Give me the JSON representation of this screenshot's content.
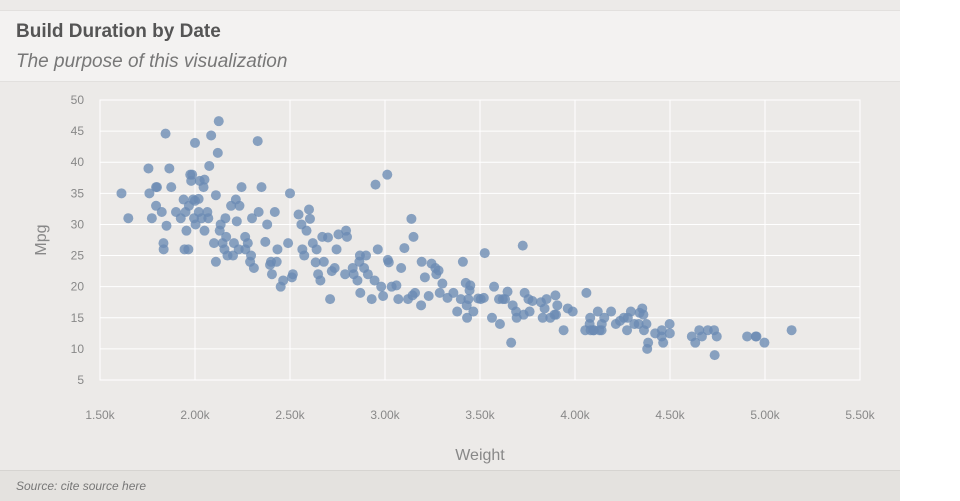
{
  "header": {
    "title": "Build Duration by Date",
    "subtitle": "The purpose of this visualization"
  },
  "footer": {
    "source": "Source: cite source here"
  },
  "colors": {
    "point": "#6a8bb4",
    "grid": "#ffffff",
    "plot_background": "#eceae8"
  },
  "chart_data": {
    "type": "scatter",
    "title": "Build Duration by Date",
    "subtitle": "The purpose of this visualization",
    "xlabel": "Weight",
    "ylabel": "Mpg",
    "xlim": [
      1500,
      5500
    ],
    "ylim": [
      5,
      50
    ],
    "x_ticks": [
      1500,
      2000,
      2500,
      3000,
      3500,
      4000,
      4500,
      5000,
      5500
    ],
    "x_tick_labels": [
      "1.50k",
      "2.00k",
      "2.50k",
      "3.00k",
      "3.50k",
      "4.00k",
      "4.50k",
      "5.00k",
      "5.50k"
    ],
    "y_ticks": [
      5,
      10,
      15,
      20,
      25,
      30,
      35,
      40,
      45,
      50
    ],
    "y_tick_labels": [
      "5",
      "10",
      "15",
      "20",
      "25",
      "30",
      "35",
      "40",
      "45",
      "50"
    ],
    "grid": true,
    "series": [
      {
        "points": [
          [
            1613,
            35
          ],
          [
            1649,
            31
          ],
          [
            1755,
            39
          ],
          [
            1760,
            35
          ],
          [
            1773,
            31
          ],
          [
            1795,
            33
          ],
          [
            1795,
            36
          ],
          [
            1800,
            36
          ],
          [
            1825,
            32
          ],
          [
            1834,
            27
          ],
          [
            1835,
            26
          ],
          [
            1845,
            44.6
          ],
          [
            1850,
            29.8
          ],
          [
            1865,
            39
          ],
          [
            1875,
            36
          ],
          [
            1900,
            32
          ],
          [
            1925,
            31
          ],
          [
            1940,
            34
          ],
          [
            1945,
            26
          ],
          [
            1950,
            32
          ],
          [
            1955,
            29
          ],
          [
            1965,
            26
          ],
          [
            1968,
            33
          ],
          [
            1975,
            38
          ],
          [
            1980,
            37
          ],
          [
            1985,
            38
          ],
          [
            1990,
            34
          ],
          [
            1995,
            31
          ],
          [
            2000,
            33.8
          ],
          [
            2000,
            43.1
          ],
          [
            2003,
            30
          ],
          [
            2019,
            34.1
          ],
          [
            2020,
            32
          ],
          [
            2025,
            37
          ],
          [
            2035,
            31
          ],
          [
            2045,
            36
          ],
          [
            2050,
            29
          ],
          [
            2050,
            37.2
          ],
          [
            2065,
            32
          ],
          [
            2070,
            31
          ],
          [
            2075,
            39.4
          ],
          [
            2085,
            44.3
          ],
          [
            2100,
            27
          ],
          [
            2110,
            24
          ],
          [
            2110,
            34.7
          ],
          [
            2120,
            41.5
          ],
          [
            2125,
            46.6
          ],
          [
            2130,
            29
          ],
          [
            2135,
            30
          ],
          [
            2145,
            27
          ],
          [
            2155,
            26
          ],
          [
            2160,
            31
          ],
          [
            2164,
            28
          ],
          [
            2171,
            25
          ],
          [
            2190,
            33
          ],
          [
            2200,
            25
          ],
          [
            2205,
            27
          ],
          [
            2215,
            34
          ],
          [
            2220,
            30.5
          ],
          [
            2230,
            26
          ],
          [
            2234,
            33
          ],
          [
            2245,
            36
          ],
          [
            2264,
            28
          ],
          [
            2265,
            26
          ],
          [
            2278,
            27
          ],
          [
            2290,
            24
          ],
          [
            2295,
            25
          ],
          [
            2300,
            31
          ],
          [
            2310,
            23
          ],
          [
            2330,
            43.4
          ],
          [
            2335,
            32
          ],
          [
            2350,
            36
          ],
          [
            2370,
            27.2
          ],
          [
            2380,
            30
          ],
          [
            2395,
            23.5
          ],
          [
            2400,
            24
          ],
          [
            2405,
            22
          ],
          [
            2420,
            32
          ],
          [
            2430,
            24
          ],
          [
            2434,
            26
          ],
          [
            2451,
            20
          ],
          [
            2464,
            21
          ],
          [
            2490,
            27
          ],
          [
            2500,
            35
          ],
          [
            2510,
            21.5
          ],
          [
            2515,
            22
          ],
          [
            2545,
            31.6
          ],
          [
            2560,
            30
          ],
          [
            2565,
            26
          ],
          [
            2575,
            25
          ],
          [
            2587,
            29
          ],
          [
            2600,
            32.4
          ],
          [
            2605,
            30.9
          ],
          [
            2620,
            27
          ],
          [
            2635,
            23.9
          ],
          [
            2640,
            26
          ],
          [
            2648,
            22
          ],
          [
            2660,
            21
          ],
          [
            2670,
            28
          ],
          [
            2678,
            24
          ],
          [
            2700,
            27.9
          ],
          [
            2711,
            18
          ],
          [
            2720,
            22.5
          ],
          [
            2735,
            23
          ],
          [
            2745,
            26
          ],
          [
            2755,
            28.4
          ],
          [
            2790,
            22
          ],
          [
            2795,
            29
          ],
          [
            2800,
            28
          ],
          [
            2830,
            23
          ],
          [
            2835,
            22
          ],
          [
            2855,
            21
          ],
          [
            2865,
            24
          ],
          [
            2868,
            25
          ],
          [
            2870,
            19
          ],
          [
            2890,
            23
          ],
          [
            2900,
            25
          ],
          [
            2910,
            22
          ],
          [
            2930,
            18
          ],
          [
            2945,
            21
          ],
          [
            2950,
            36.4
          ],
          [
            2962,
            26
          ],
          [
            2980,
            20
          ],
          [
            2990,
            18.5
          ],
          [
            3012,
            38
          ],
          [
            3015,
            24.3
          ],
          [
            3020,
            23.9
          ],
          [
            3035,
            20
          ],
          [
            3060,
            20.2
          ],
          [
            3070,
            18
          ],
          [
            3085,
            23
          ],
          [
            3102,
            26.2
          ],
          [
            3121,
            18
          ],
          [
            3139,
            30.9
          ],
          [
            3145,
            18.6
          ],
          [
            3150,
            28
          ],
          [
            3158,
            19
          ],
          [
            3190,
            17
          ],
          [
            3193,
            24
          ],
          [
            3210,
            21.5
          ],
          [
            3230,
            18.5
          ],
          [
            3245,
            23.7
          ],
          [
            3265,
            23
          ],
          [
            3270,
            22
          ],
          [
            3282,
            22.6
          ],
          [
            3288,
            19
          ],
          [
            3302,
            20.5
          ],
          [
            3329,
            18.2
          ],
          [
            3360,
            19
          ],
          [
            3380,
            16
          ],
          [
            3399,
            18
          ],
          [
            3410,
            24
          ],
          [
            3425,
            20.6
          ],
          [
            3430,
            17
          ],
          [
            3432,
            15
          ],
          [
            3439,
            18
          ],
          [
            3445,
            19.4
          ],
          [
            3449,
            20.2
          ],
          [
            3465,
            16
          ],
          [
            3490,
            18.1
          ],
          [
            3504,
            18
          ],
          [
            3520,
            18.2
          ],
          [
            3525,
            25.4
          ],
          [
            3563,
            15
          ],
          [
            3574,
            20
          ],
          [
            3600,
            18
          ],
          [
            3605,
            14
          ],
          [
            3620,
            18
          ],
          [
            3632,
            18
          ],
          [
            3645,
            19.2
          ],
          [
            3664,
            11
          ],
          [
            3672,
            17
          ],
          [
            3690,
            16
          ],
          [
            3693,
            15
          ],
          [
            3725,
            26.6
          ],
          [
            3730,
            15.5
          ],
          [
            3735,
            19
          ],
          [
            3755,
            18
          ],
          [
            3761,
            16
          ],
          [
            3776,
            17.7
          ],
          [
            3821,
            17.5
          ],
          [
            3830,
            15
          ],
          [
            3840,
            16.5
          ],
          [
            3850,
            18
          ],
          [
            3870,
            15
          ],
          [
            3892,
            15.5
          ],
          [
            3897,
            18.6
          ],
          [
            3900,
            15.5
          ],
          [
            3907,
            17
          ],
          [
            3940,
            13
          ],
          [
            3962,
            16.5
          ],
          [
            3988,
            16
          ],
          [
            4054,
            13
          ],
          [
            4060,
            19
          ],
          [
            4077,
            14
          ],
          [
            4080,
            15
          ],
          [
            4082,
            13
          ],
          [
            4096,
            13
          ],
          [
            4100,
            13
          ],
          [
            4120,
            16
          ],
          [
            4129,
            13
          ],
          [
            4140,
            13
          ],
          [
            4141,
            14
          ],
          [
            4154,
            15
          ],
          [
            4190,
            16
          ],
          [
            4215,
            14
          ],
          [
            4237,
            14.5
          ],
          [
            4257,
            15
          ],
          [
            4274,
            13
          ],
          [
            4278,
            15
          ],
          [
            4294,
            16
          ],
          [
            4312,
            14
          ],
          [
            4335,
            14
          ],
          [
            4340,
            15.8
          ],
          [
            4354,
            16.5
          ],
          [
            4360,
            15.5
          ],
          [
            4363,
            13
          ],
          [
            4376,
            14
          ],
          [
            4380,
            10
          ],
          [
            4385,
            11
          ],
          [
            4422,
            12.5
          ],
          [
            4456,
            12
          ],
          [
            4457,
            13
          ],
          [
            4464,
            11
          ],
          [
            4498,
            14
          ],
          [
            4499,
            12.5
          ],
          [
            4615,
            12
          ],
          [
            4633,
            11
          ],
          [
            4654,
            13
          ],
          [
            4668,
            12
          ],
          [
            4699,
            13
          ],
          [
            4732,
            13
          ],
          [
            4735,
            9
          ],
          [
            4746,
            12
          ],
          [
            4906,
            12
          ],
          [
            4951,
            12
          ],
          [
            4955,
            12
          ],
          [
            4997,
            11
          ],
          [
            5140,
            13
          ]
        ]
      }
    ]
  }
}
